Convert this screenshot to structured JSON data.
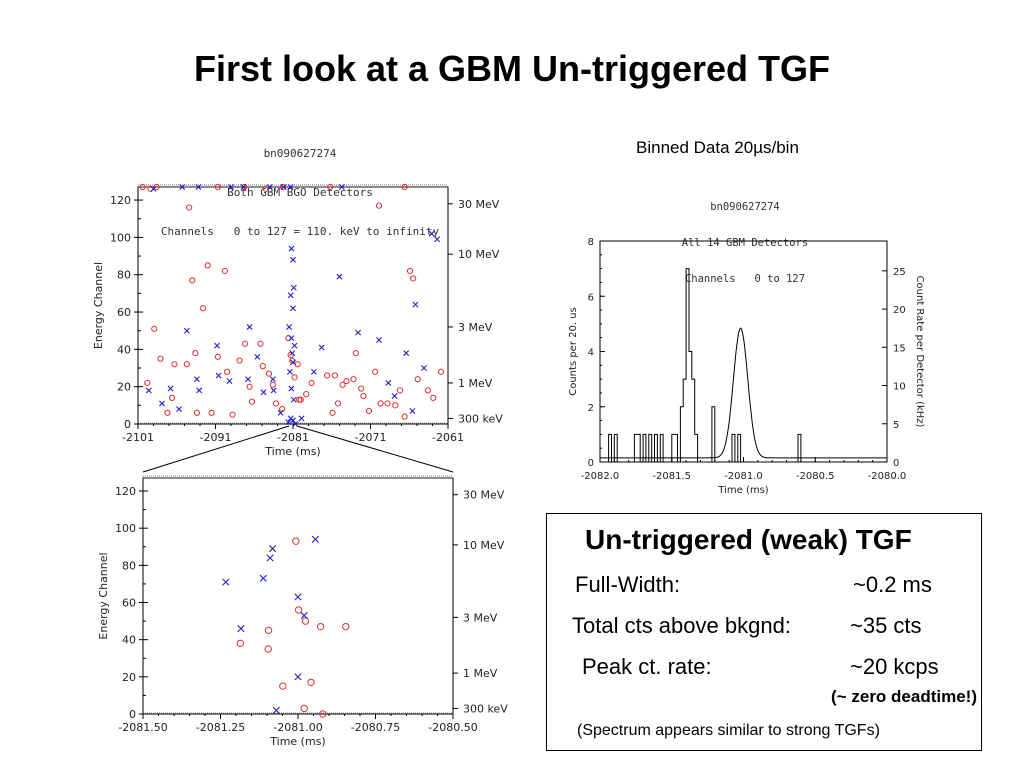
{
  "title": "First look at a GBM Un-triggered TGF",
  "binned_label": "Binned Data  20µs/bin",
  "plot1_header": [
    "bn090627274",
    "Both GBM BGO Detectors",
    "Channels   0 to 127 = 110. keV to infinity"
  ],
  "plot2_header": [
    "bn090627274",
    "All 14 GBM Detectors",
    "Channels   0 to 127"
  ],
  "info_box": {
    "heading": "Un-triggered (weak) TGF",
    "rows": [
      {
        "label": "Full-Width:",
        "value": "~0.2 ms"
      },
      {
        "label": "Total cts above bkgnd:",
        "value": "~35 cts"
      },
      {
        "label": "Peak ct. rate:",
        "value": "~20 kcps"
      }
    ],
    "note": "(~ zero deadtime!)",
    "footnote": "(Spectrum appears similar to strong TGFs)"
  },
  "colors": {
    "circle_series": "#e03030",
    "cross_series": "#2222cc",
    "axis": "#000000"
  },
  "chart_data": [
    {
      "type": "scatter",
      "xlabel": "Time (ms)",
      "ylabel": "Energy Channel",
      "xlim": [
        -2101,
        -2061
      ],
      "ylim": [
        0,
        127
      ],
      "xticks": [
        "-2101",
        "-2091",
        "-2081",
        "-2071",
        "-2061"
      ],
      "yticks": [
        "0",
        "20",
        "40",
        "60",
        "80",
        "100",
        "120"
      ],
      "right_ticks": [
        {
          "label": "300 keV",
          "channel": 3
        },
        {
          "label": "1 MeV",
          "channel": 22
        },
        {
          "label": "3 MeV",
          "channel": 52
        },
        {
          "label": "10 MeV",
          "channel": 91
        },
        {
          "label": "30 MeV",
          "channel": 118
        }
      ],
      "series": [
        {
          "marker": "circle",
          "points": [
            [
              -2100.4,
              127
            ],
            [
              -2099.4,
              126
            ],
            [
              -2098.6,
              127
            ],
            [
              -2090.7,
              127
            ],
            [
              -2087.3,
              127
            ],
            [
              -2084.5,
              126
            ],
            [
              -2082.3,
              127
            ],
            [
              -2076.2,
              127
            ],
            [
              -2069.9,
              117
            ],
            [
              -2066.6,
              127
            ],
            [
              -2098.9,
              51
            ],
            [
              -2098.1,
              35
            ],
            [
              -2097.2,
              6
            ],
            [
              -2096.3,
              32
            ],
            [
              -2094.4,
              116
            ],
            [
              -2094.0,
              77
            ],
            [
              -2093.6,
              38
            ],
            [
              -2092.6,
              62
            ],
            [
              -2092.0,
              85
            ],
            [
              -2089.8,
              82
            ],
            [
              -2091.5,
              6
            ],
            [
              -2087.9,
              34
            ],
            [
              -2087.2,
              43
            ],
            [
              -2085.2,
              43
            ],
            [
              -2086.3,
              12
            ],
            [
              -2084.1,
              27
            ],
            [
              -2083.6,
              21
            ],
            [
              -2083.2,
              11
            ],
            [
              -2082.4,
              8
            ],
            [
              -2081.6,
              46
            ],
            [
              -2081.3,
              37
            ],
            [
              -2081.1,
              34
            ],
            [
              -2080.8,
              25
            ],
            [
              -2080.4,
              32
            ],
            [
              -2080.2,
              13
            ],
            [
              -2080.0,
              13
            ],
            [
              -2079.3,
              16
            ],
            [
              -2078.6,
              22
            ],
            [
              -2076.6,
              26
            ],
            [
              -2075.6,
              26
            ],
            [
              -2075.2,
              11
            ],
            [
              -2074.6,
              21
            ],
            [
              -2074.1,
              23
            ],
            [
              -2073.2,
              24
            ],
            [
              -2072.9,
              38
            ],
            [
              -2072.2,
              19
            ],
            [
              -2071.9,
              15
            ],
            [
              -2070.4,
              28
            ],
            [
              -2069.7,
              11
            ],
            [
              -2068.8,
              11
            ],
            [
              -2067.8,
              10
            ],
            [
              -2066.6,
              4
            ],
            [
              -2065.9,
              82
            ],
            [
              -2065.5,
              78
            ],
            [
              -2064.9,
              24
            ],
            [
              -2063.6,
              18
            ],
            [
              -2062.9,
              14
            ],
            [
              -2061.9,
              28
            ],
            [
              -2094.7,
              32
            ],
            [
              -2089.5,
              28
            ],
            [
              -2090.7,
              36
            ],
            [
              -2088.8,
              5
            ],
            [
              -2099.8,
              22
            ],
            [
              -2093.4,
              6
            ],
            [
              -2084.9,
              31
            ],
            [
              -2086.6,
              20
            ],
            [
              -2075.9,
              6
            ],
            [
              -2071.2,
              7
            ],
            [
              -2067.2,
              18
            ],
            [
              -2096.6,
              14
            ]
          ]
        },
        {
          "marker": "cross",
          "points": [
            [
              -2099.0,
              126
            ],
            [
              -2095.3,
              127
            ],
            [
              -2093.2,
              127
            ],
            [
              -2089.0,
              127
            ],
            [
              -2087.4,
              127
            ],
            [
              -2084.0,
              127
            ],
            [
              -2082.2,
              127
            ],
            [
              -2081.3,
              127
            ],
            [
              -2074.7,
              127
            ],
            [
              -2063.1,
              102
            ],
            [
              -2062.4,
              99
            ],
            [
              -2081.2,
              94
            ],
            [
              -2081.0,
              88
            ],
            [
              -2080.9,
              73
            ],
            [
              -2081.3,
              69
            ],
            [
              -2081.0,
              62
            ],
            [
              -2081.5,
              52
            ],
            [
              -2081.2,
              46
            ],
            [
              -2080.8,
              42
            ],
            [
              -2081.1,
              38
            ],
            [
              -2081.0,
              33
            ],
            [
              -2081.4,
              28
            ],
            [
              -2081.2,
              19
            ],
            [
              -2080.9,
              13
            ],
            [
              -2081.6,
              1
            ],
            [
              -2081.3,
              3
            ],
            [
              -2081.0,
              2
            ],
            [
              -2080.7,
              0
            ],
            [
              -2086.6,
              52
            ],
            [
              -2099.6,
              18
            ],
            [
              -2097.9,
              11
            ],
            [
              -2096.8,
              19
            ],
            [
              -2095.7,
              8
            ],
            [
              -2094.7,
              50
            ],
            [
              -2093.4,
              24
            ],
            [
              -2090.8,
              42
            ],
            [
              -2090.6,
              26
            ],
            [
              -2089.2,
              23
            ],
            [
              -2086.8,
              24
            ],
            [
              -2085.6,
              36
            ],
            [
              -2083.5,
              18
            ],
            [
              -2082.6,
              6
            ],
            [
              -2079.9,
              3
            ],
            [
              -2078.3,
              28
            ],
            [
              -2077.3,
              41
            ],
            [
              -2075.0,
              79
            ],
            [
              -2072.6,
              49
            ],
            [
              -2069.9,
              45
            ],
            [
              -2068.7,
              22
            ],
            [
              -2067.9,
              15
            ],
            [
              -2066.4,
              38
            ],
            [
              -2065.2,
              64
            ],
            [
              -2064.1,
              30
            ],
            [
              -2065.6,
              7
            ],
            [
              -2093.1,
              18
            ],
            [
              -2083.6,
              24
            ],
            [
              -2084.8,
              17
            ]
          ]
        }
      ]
    },
    {
      "type": "line",
      "xlabel": "Time (ms)",
      "ylabel": "Counts per  20. us",
      "ylabel_right": "Count Rate per Detector (kHz)",
      "xlim": [
        -2082.0,
        -2080.0
      ],
      "ylim": [
        0,
        8
      ],
      "xticks": [
        "-2082.0",
        "-2081.5",
        "-2081.0",
        "-2080.5",
        "-2080.0"
      ],
      "yticks": [
        "0",
        "2",
        "4",
        "6",
        "8"
      ],
      "right_ticks": [
        "0",
        "5",
        "10",
        "15",
        "20",
        "25"
      ],
      "series": [
        {
          "style": "histogram",
          "bin_width_ms": 0.02,
          "start_ms": -2082.0,
          "counts": [
            0,
            0,
            0,
            1,
            0,
            1,
            0,
            0,
            0,
            0,
            0,
            0,
            1,
            1,
            0,
            1,
            0,
            1,
            0,
            1,
            0,
            1,
            0,
            0,
            0,
            1,
            1,
            0,
            2,
            3,
            7,
            4,
            3,
            1,
            0,
            0,
            0,
            0,
            0,
            2,
            0,
            0,
            0,
            0,
            0,
            0,
            1,
            0,
            1,
            0,
            0,
            0,
            0,
            0,
            0,
            0,
            0,
            0,
            0,
            0,
            0,
            0,
            0,
            0,
            0,
            0,
            0,
            0,
            0,
            1,
            0,
            0,
            0,
            0,
            0,
            0,
            0,
            0,
            0,
            0,
            0,
            0,
            0,
            0,
            0,
            0,
            0,
            0,
            0,
            0,
            0,
            0,
            0,
            0,
            0,
            0,
            0,
            0,
            0,
            0
          ]
        },
        {
          "style": "fit",
          "center_ms": -2081.02,
          "sigma_ms": 0.05,
          "amplitude": 4.7,
          "background": 0.15
        }
      ]
    },
    {
      "type": "scatter",
      "xlabel": "Time (ms)",
      "ylabel": "Energy Channel",
      "xlim": [
        -2081.5,
        -2080.5
      ],
      "ylim": [
        0,
        127
      ],
      "xticks": [
        "-2081.50",
        "-2081.25",
        "-2081.00",
        "-2080.75",
        "-2080.50"
      ],
      "yticks": [
        "0",
        "20",
        "40",
        "60",
        "80",
        "100",
        "120"
      ],
      "right_ticks": [
        {
          "label": "300 keV",
          "channel": 3
        },
        {
          "label": "1 MeV",
          "channel": 22
        },
        {
          "label": "3 MeV",
          "channel": 52
        },
        {
          "label": "10 MeV",
          "channel": 91
        },
        {
          "label": "30 MeV",
          "channel": 118
        }
      ],
      "series": [
        {
          "marker": "circle",
          "points": [
            [
              -2081.007,
              93
            ],
            [
              -2081.095,
              45
            ],
            [
              -2080.998,
              56
            ],
            [
              -2080.976,
              50
            ],
            [
              -2080.958,
              17
            ],
            [
              -2080.927,
              47
            ],
            [
              -2080.846,
              47
            ],
            [
              -2081.186,
              38
            ],
            [
              -2081.096,
              35
            ],
            [
              -2081.049,
              15
            ],
            [
              -2080.98,
              3
            ],
            [
              -2080.92,
              0
            ]
          ]
        },
        {
          "marker": "cross",
          "points": [
            [
              -2080.944,
              94
            ],
            [
              -2081.082,
              89
            ],
            [
              -2081.09,
              84
            ],
            [
              -2081.112,
              73
            ],
            [
              -2081.233,
              71
            ],
            [
              -2081.0,
              63
            ],
            [
              -2080.98,
              53
            ],
            [
              -2081.184,
              46
            ],
            [
              -2081.0,
              20
            ],
            [
              -2081.07,
              2
            ]
          ]
        }
      ]
    }
  ]
}
